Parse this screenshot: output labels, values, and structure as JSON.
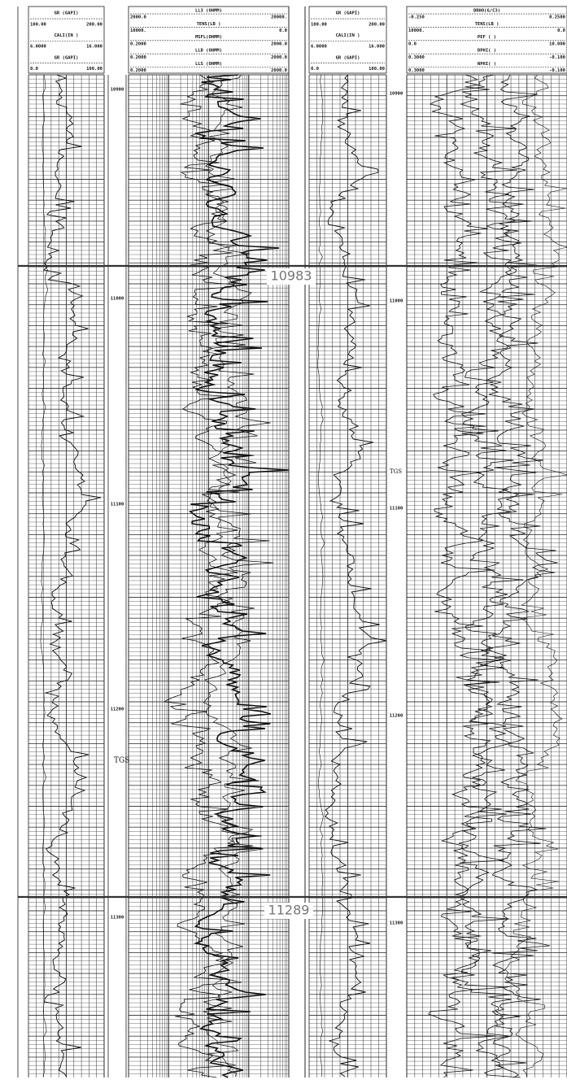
{
  "left_panel": {
    "track1_header": [
      {
        "label": "GR (GAPI)",
        "left": "100.00",
        "right": "200.00"
      },
      {
        "label": "CALI(IN )",
        "left": "6.0000",
        "right": "16.000"
      },
      {
        "label": "GR (GAPI)",
        "left": "0.0",
        "right": "100.00"
      }
    ],
    "track2_header": [
      {
        "label": "LL3 (OHMM)",
        "left": "2000.0",
        "right": "20000."
      },
      {
        "label": "TENS(LB )",
        "left": "10000.",
        "right": "0.0"
      },
      {
        "label": "MSFL(OHMM)",
        "left": "0.2000",
        "right": "2000.0"
      },
      {
        "label": "LLD (OHMM)",
        "left": "0.2000",
        "right": "2000.0"
      },
      {
        "label": "LLS (OHMM)",
        "left": "0.2000",
        "right": "2000.0"
      }
    ],
    "depth_labels": [
      "10900",
      "11000",
      "11100",
      "11200",
      "11300"
    ],
    "annotation": "TGS"
  },
  "right_panel": {
    "track1_header": [
      {
        "label": "GR (GAPI)",
        "left": "100.00",
        "right": "200.00"
      },
      {
        "label": "CALI(IN )",
        "left": "6.0000",
        "right": "16.000"
      },
      {
        "label": "GR (GAPI)",
        "left": "0.0",
        "right": "100.00"
      }
    ],
    "track2_header": [
      {
        "label": "DRHO(G/C3)",
        "left": "-0.250",
        "right": "0.2500"
      },
      {
        "label": "TENS(LB )",
        "left": "10000.",
        "right": "0.0"
      },
      {
        "label": "PEF ( )",
        "left": "0.0",
        "right": "10.000"
      },
      {
        "label": "DPHI( )",
        "left": "0.3000",
        "right": "-0.100"
      },
      {
        "label": "NPHI( )",
        "left": "0.3000",
        "right": "-0.100"
      }
    ],
    "depth_labels": [
      "10900",
      "11000",
      "11100",
      "11200",
      "11300"
    ],
    "annotation": "TGS"
  },
  "markers": [
    "10983",
    "11289"
  ]
}
